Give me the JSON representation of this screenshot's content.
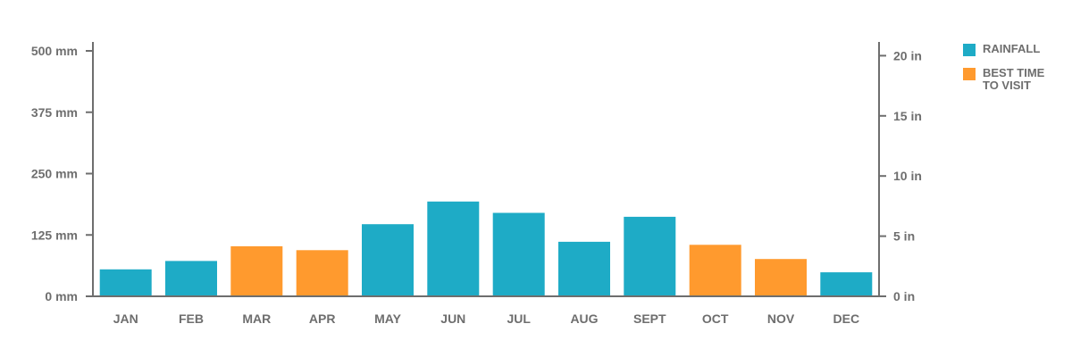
{
  "colors": {
    "rainfall": "#1eabc6",
    "best_time": "#ff9a2e",
    "axis": "#6e6e6e",
    "text": "#6e6e6e"
  },
  "legend": {
    "items": [
      {
        "label": "RAINFALL",
        "color": "#1eabc6"
      },
      {
        "label": "BEST TIME TO VISIT",
        "color": "#ff9a2e"
      }
    ]
  },
  "chart_data": {
    "type": "bar",
    "title": "",
    "xlabel": "",
    "ylabel": "",
    "categories": [
      "JAN",
      "FEB",
      "MAR",
      "APR",
      "MAY",
      "JUN",
      "JUL",
      "AUG",
      "SEPT",
      "OCT",
      "NOV",
      "DEC"
    ],
    "values": [
      55,
      72,
      102,
      94,
      147,
      193,
      170,
      111,
      162,
      105,
      76,
      49
    ],
    "best_time": [
      false,
      false,
      true,
      true,
      false,
      false,
      false,
      false,
      false,
      true,
      true,
      false
    ],
    "ylim": [
      0,
      500
    ],
    "y_ticks": [
      {
        "value": 0,
        "label": "0 mm"
      },
      {
        "value": 125,
        "label": "125 mm"
      },
      {
        "value": 250,
        "label": "250 mm"
      },
      {
        "value": 375,
        "label": "375 mm"
      },
      {
        "value": 500,
        "label": "500 mm"
      }
    ],
    "y2_ticks": [
      {
        "value": 0,
        "label": "0 in"
      },
      {
        "value": 5,
        "label": "5 in"
      },
      {
        "value": 10,
        "label": "10 in"
      },
      {
        "value": 15,
        "label": "15 in"
      },
      {
        "value": 20,
        "label": "20 in"
      }
    ],
    "y2lim": [
      0,
      20.4
    ],
    "grid": false,
    "legend_position": "top-right"
  }
}
